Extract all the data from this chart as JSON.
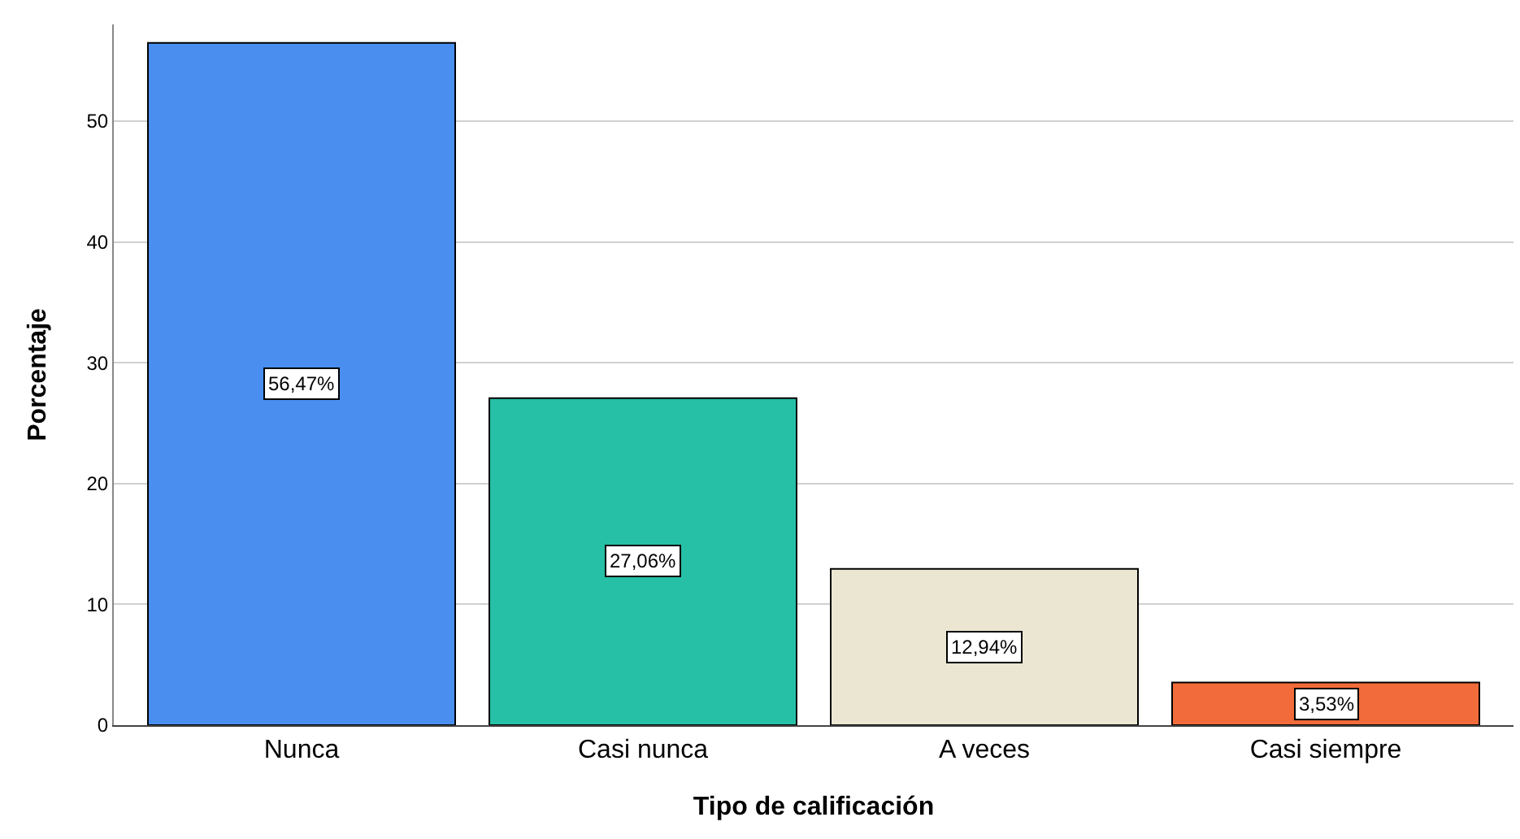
{
  "chart_data": {
    "type": "bar",
    "xlabel": "Tipo de calificación",
    "ylabel": "Porcentaje",
    "categories": [
      "Nunca",
      "Casi nunca",
      "A veces",
      "Casi siempre"
    ],
    "values": [
      56.47,
      27.06,
      12.94,
      3.53
    ],
    "value_labels": [
      "56,47%",
      "27,06%",
      "12,94%",
      "3,53%"
    ],
    "colors": [
      "#4a8ff0",
      "#26c0a6",
      "#ebe6d2",
      "#f26b3a"
    ],
    "ylim": [
      0,
      58
    ],
    "yticks": [
      0,
      10,
      20,
      30,
      40,
      50
    ],
    "grid": "y"
  }
}
